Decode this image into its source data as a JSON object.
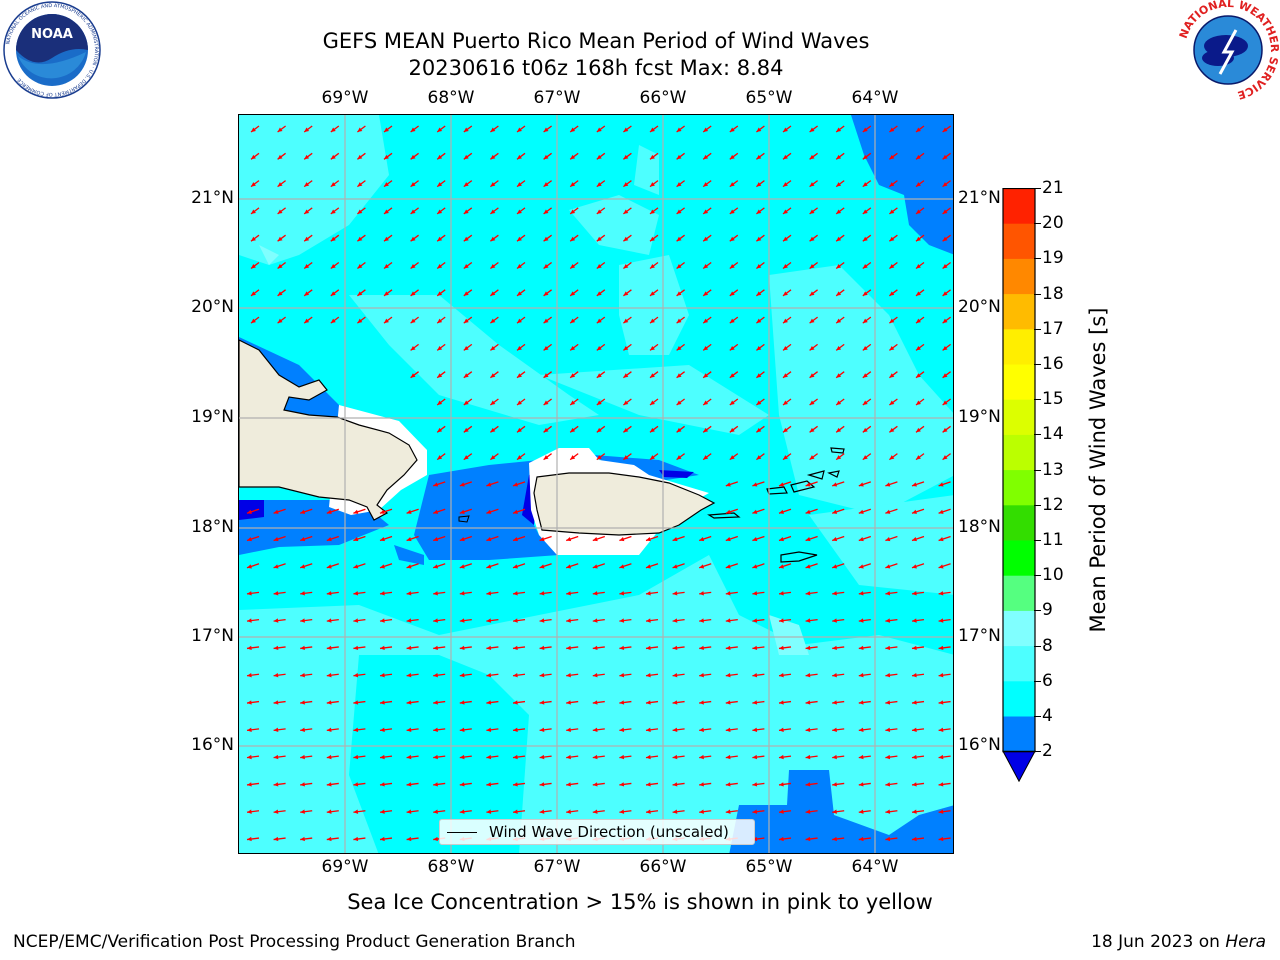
{
  "header": {
    "title_line1": "GEFS MEAN Puerto Rico Mean Period of Wind Waves",
    "title_line2": "20230616 t06z 168h fcst   Max: 8.84"
  },
  "logos": {
    "noaa": {
      "text": "NOAA",
      "ring_text": "NATIONAL OCEANIC AND ATMOSPHERIC ADMINISTRATION · U.S. DEPARTMENT OF COMMERCE"
    },
    "nws": {
      "ring_text": "NATIONAL WEATHER SERVICE"
    }
  },
  "map": {
    "lon_labels": [
      "69°W",
      "68°W",
      "67°W",
      "66°W",
      "65°W",
      "64°W"
    ],
    "lat_labels": [
      "21°N",
      "20°N",
      "19°N",
      "18°N",
      "17°N",
      "16°N"
    ],
    "colors": {
      "ocean_main": "#00ffff",
      "ocean_light": "#4dffff",
      "ocean_lighter": "#80ffff",
      "blue": "#0080ff",
      "dark_blue": "#0000e6",
      "land": "#efecdc",
      "arrow": "#ff0000",
      "grid": "#b0b0b0"
    },
    "arrow_direction": "toward west-southwest"
  },
  "legend": {
    "label": "Wind Wave Direction (unscaled)"
  },
  "colorbar": {
    "label": "Mean Period of Wind Waves [s]",
    "ticks": [
      "2",
      "4",
      "6",
      "8",
      "9",
      "10",
      "11",
      "12",
      "13",
      "14",
      "15",
      "16",
      "17",
      "18",
      "19",
      "20",
      "21"
    ],
    "colors": [
      "#0080ff",
      "#00ffff",
      "#4dffff",
      "#80ffff",
      "#55ff80",
      "#00ff00",
      "#33dd00",
      "#80ff00",
      "#bbff00",
      "#dcff00",
      "#ffff00",
      "#ffee00",
      "#ffbb00",
      "#ff8800",
      "#ff5500",
      "#ff2200",
      "#ff0000"
    ],
    "under_color": "#0000e6"
  },
  "subtitle": "Sea Ice Concentration > 15% is shown in pink to yellow",
  "footer": {
    "left": "NCEP/EMC/Verification Post Processing Product Generation Branch",
    "right_prefix": "18 Jun 2023 on ",
    "right_italic": "Hera"
  }
}
